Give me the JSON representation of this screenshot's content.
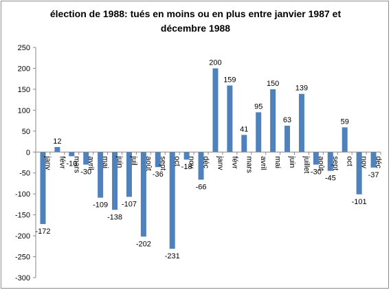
{
  "chart_data": {
    "type": "bar",
    "title_line1": "élection de 1988: tués en moins ou en plus entre janvier 1987 et",
    "title_line2": "décembre 1988",
    "categories": [
      "janv",
      "févr",
      "mars",
      "avril",
      "mai",
      "juin",
      "juil",
      "août",
      "sept",
      "oct",
      "nov",
      "déc",
      "janv",
      "févr",
      "mars",
      "avril",
      "mai",
      "juin",
      "juillet",
      "août",
      "sept",
      "oct",
      "nov",
      "déc"
    ],
    "values": [
      -172,
      12,
      -10,
      -30,
      -109,
      -138,
      -107,
      -202,
      -36,
      -231,
      -18,
      -66,
      200,
      159,
      41,
      95,
      150,
      63,
      139,
      -30,
      -45,
      59,
      -101,
      -37
    ],
    "data_labels": [
      "-172",
      "12",
      "-10",
      "-30",
      "-109",
      "-138",
      "-107",
      "-202",
      "-36",
      "-231",
      "-18",
      "-66",
      "200",
      "159",
      "41",
      "95",
      "150",
      "63",
      "139",
      "-30",
      "-45",
      "59",
      "-101",
      "-37"
    ],
    "ylim": [
      -300,
      250
    ],
    "yticks": [
      -300,
      -250,
      -200,
      -150,
      -100,
      -50,
      0,
      50,
      100,
      150,
      200,
      250
    ],
    "grid": false,
    "legend": false,
    "bar_color": "#4f81bd"
  }
}
